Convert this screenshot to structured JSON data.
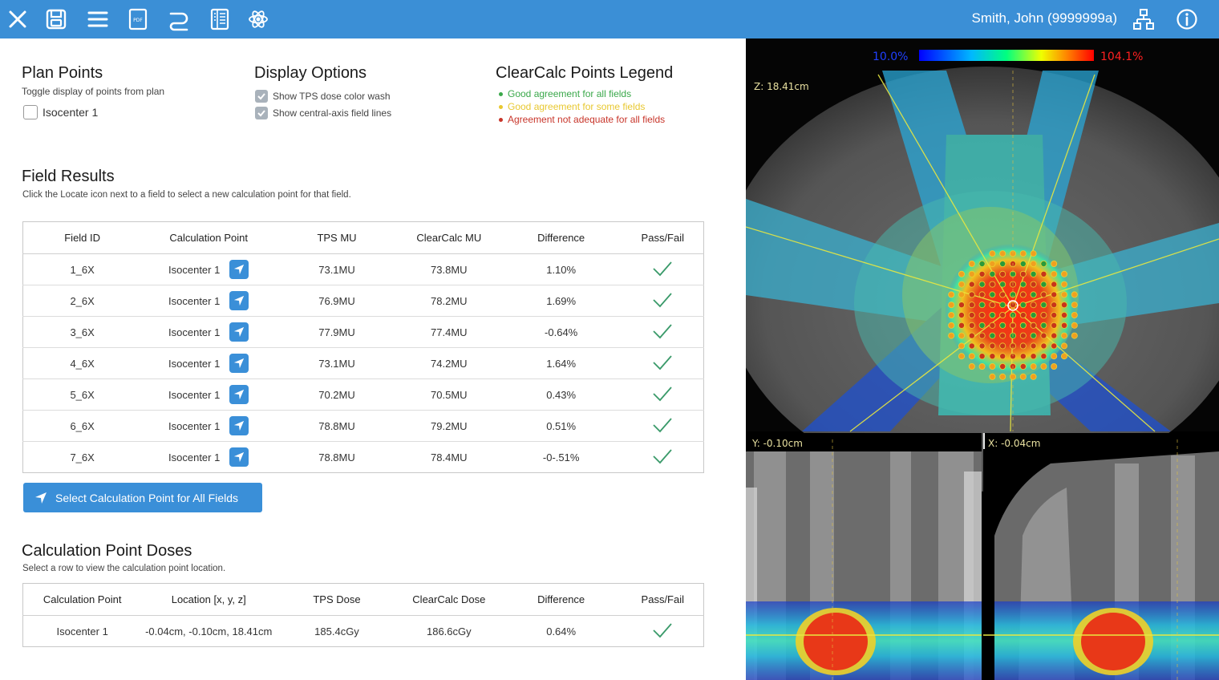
{
  "toolbar": {
    "icons": [
      "close-icon",
      "save-icon",
      "menu-icon",
      "pdf-icon",
      "route-icon",
      "book-icon",
      "atom-icon",
      "network-icon",
      "info-icon"
    ],
    "patient": "Smith, John (9999999a)",
    "pdf_label": "PDF"
  },
  "plan_points": {
    "title": "Plan Points",
    "subtitle": "Toggle display of points from plan",
    "items": [
      {
        "label": "Isocenter 1",
        "checked": false
      }
    ]
  },
  "display_options": {
    "title": "Display Options",
    "items": [
      {
        "label": "Show TPS dose color wash",
        "checked": true
      },
      {
        "label": "Show central-axis field lines",
        "checked": true
      }
    ]
  },
  "legend": {
    "title": "ClearCalc Points Legend",
    "items": [
      {
        "label": "Good agreement for all fields",
        "color": "#3aa84a"
      },
      {
        "label": "Good agreement for some fields",
        "color": "#e8c830"
      },
      {
        "label": "Agreement not adequate for all fields",
        "color": "#c8352a"
      }
    ]
  },
  "field_results": {
    "title": "Field Results",
    "subtitle": "Click the Locate icon next to a field to select a new calculation point for that field.",
    "headers": [
      "Field ID",
      "Calculation Point",
      "TPS MU",
      "ClearCalc MU",
      "Difference",
      "Pass/Fail"
    ],
    "rows": [
      {
        "field": "1_6X",
        "point": "Isocenter 1",
        "tps": "73.1MU",
        "cc": "73.8MU",
        "diff": "1.10%",
        "pass": true
      },
      {
        "field": "2_6X",
        "point": "Isocenter 1",
        "tps": "76.9MU",
        "cc": "78.2MU",
        "diff": "1.69%",
        "pass": true
      },
      {
        "field": "3_6X",
        "point": "Isocenter 1",
        "tps": "77.9MU",
        "cc": "77.4MU",
        "diff": "-0.64%",
        "pass": true
      },
      {
        "field": "4_6X",
        "point": "Isocenter 1",
        "tps": "73.1MU",
        "cc": "74.2MU",
        "diff": "1.64%",
        "pass": true
      },
      {
        "field": "5_6X",
        "point": "Isocenter 1",
        "tps": "70.2MU",
        "cc": "70.5MU",
        "diff": "0.43%",
        "pass": true
      },
      {
        "field": "6_6X",
        "point": "Isocenter 1",
        "tps": "78.8MU",
        "cc": "79.2MU",
        "diff": "0.51%",
        "pass": true
      },
      {
        "field": "7_6X",
        "point": "Isocenter 1",
        "tps": "78.8MU",
        "cc": "78.4MU",
        "diff": "-0-.51%",
        "pass": true
      }
    ],
    "select_all_label": "Select Calculation Point for All Fields"
  },
  "point_doses": {
    "title": "Calculation Point Doses",
    "subtitle": "Select a row to view the calculation point location.",
    "headers": [
      "Calculation Point",
      "Location [x, y, z]",
      "TPS Dose",
      "ClearCalc Dose",
      "Difference",
      "Pass/Fail"
    ],
    "rows": [
      {
        "point": "Isocenter 1",
        "location": "-0.04cm, -0.10cm, 18.41cm",
        "tps": "185.4cGy",
        "cc": "186.6cGy",
        "diff": "0.64%",
        "pass": true
      }
    ]
  },
  "viewer": {
    "scale_min": "10.0%",
    "scale_max": "104.1%",
    "axial_label": "Z: 18.41cm",
    "coronal_label": "Y: -0.10cm",
    "sagittal_label": "X: -0.04cm"
  }
}
